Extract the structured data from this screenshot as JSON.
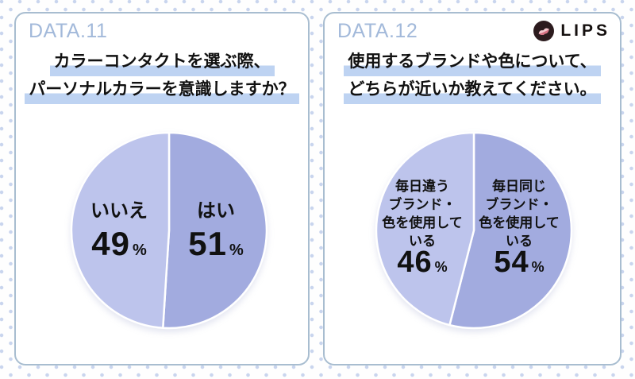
{
  "brand": {
    "name": "LIPS",
    "logo_icon": "lips-kiss-mark-icon"
  },
  "colors": {
    "slice_dark": "#a2abdf",
    "slice_light": "#bdc4ec",
    "highlight": "#bed3f2",
    "header_text": "#a2b9da",
    "card_border": "#a8bdd0",
    "background_dots": "#c9d5ee"
  },
  "panels": [
    {
      "header": "DATA.11",
      "title_lines": [
        "カラーコンタクトを選ぶ際、",
        "パーソナルカラーを意識しますか？"
      ],
      "slices": [
        {
          "label": "はい",
          "value": "51",
          "unit": "%",
          "color": "#a2abdf"
        },
        {
          "label": "いいえ",
          "value": "49",
          "unit": "%",
          "color": "#bdc4ec"
        }
      ]
    },
    {
      "header": "DATA.12",
      "title_lines": [
        "使用するブランドや色について、",
        "どちらが近いか教えてください。"
      ],
      "slices": [
        {
          "label_lines": [
            "毎日同じ",
            "ブランド・",
            "色を使用して",
            "いる"
          ],
          "value": "54",
          "unit": "%",
          "color": "#a2abdf"
        },
        {
          "label_lines": [
            "毎日違う",
            "ブランド・",
            "色を使用して",
            "いる"
          ],
          "value": "46",
          "unit": "%",
          "color": "#bdc4ec"
        }
      ]
    }
  ],
  "chart_data": [
    {
      "type": "pie",
      "title": "カラーコンタクトを選ぶ際、パーソナルカラーを意識しますか？",
      "labels": [
        "はい",
        "いいえ"
      ],
      "values": [
        51,
        49
      ],
      "colors": [
        "#a2abdf",
        "#bdc4ec"
      ],
      "start_angle_deg": 0,
      "direction": "clockwise",
      "legend_position": "inside-slices"
    },
    {
      "type": "pie",
      "title": "使用するブランドや色について、どちらが近いか教えてください。",
      "labels": [
        "毎日同じブランド・色を使用している",
        "毎日違うブランド・色を使用している"
      ],
      "values": [
        54,
        46
      ],
      "colors": [
        "#a2abdf",
        "#bdc4ec"
      ],
      "start_angle_deg": 0,
      "direction": "clockwise",
      "legend_position": "inside-slices"
    }
  ]
}
